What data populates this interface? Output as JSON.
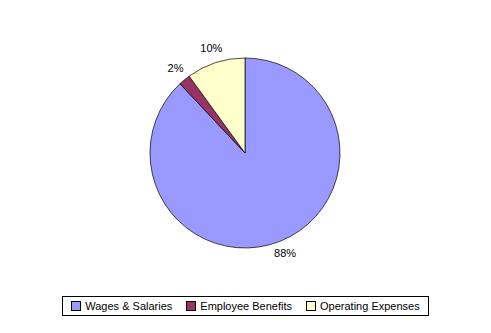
{
  "chart_data": {
    "type": "pie",
    "categories": [
      "Wages & Salaries",
      "Employee Benefits",
      "Operating Expenses"
    ],
    "values": [
      88,
      2,
      10
    ],
    "value_labels": [
      "88%",
      "2%",
      "10%"
    ],
    "colors": [
      "#9999ff",
      "#993366",
      "#ffffcc"
    ],
    "data_labels": true,
    "legend": "bottom"
  }
}
